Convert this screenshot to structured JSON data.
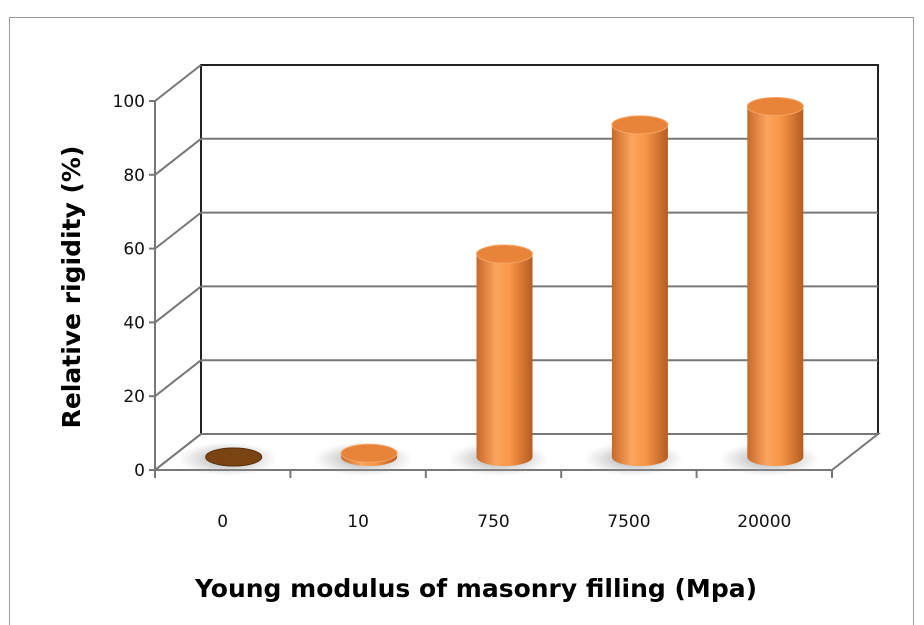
{
  "chart_data": {
    "type": "bar",
    "style": "3d-cylinder",
    "categories": [
      "0",
      "10",
      "750",
      "7500",
      "20000"
    ],
    "values": [
      0,
      1,
      55,
      90,
      95
    ],
    "xlabel": "Young modulus of masonry filling (Mpa)",
    "ylabel": "Relative  rigidity  (%)",
    "ylim": [
      0,
      100
    ],
    "yticks": [
      "0",
      "20",
      "40",
      "60",
      "80",
      "100"
    ],
    "grid": true,
    "colors": {
      "bar": "#F79646",
      "bar_dark": "#8B4A14",
      "bar_zero": "#7A4312"
    }
  }
}
